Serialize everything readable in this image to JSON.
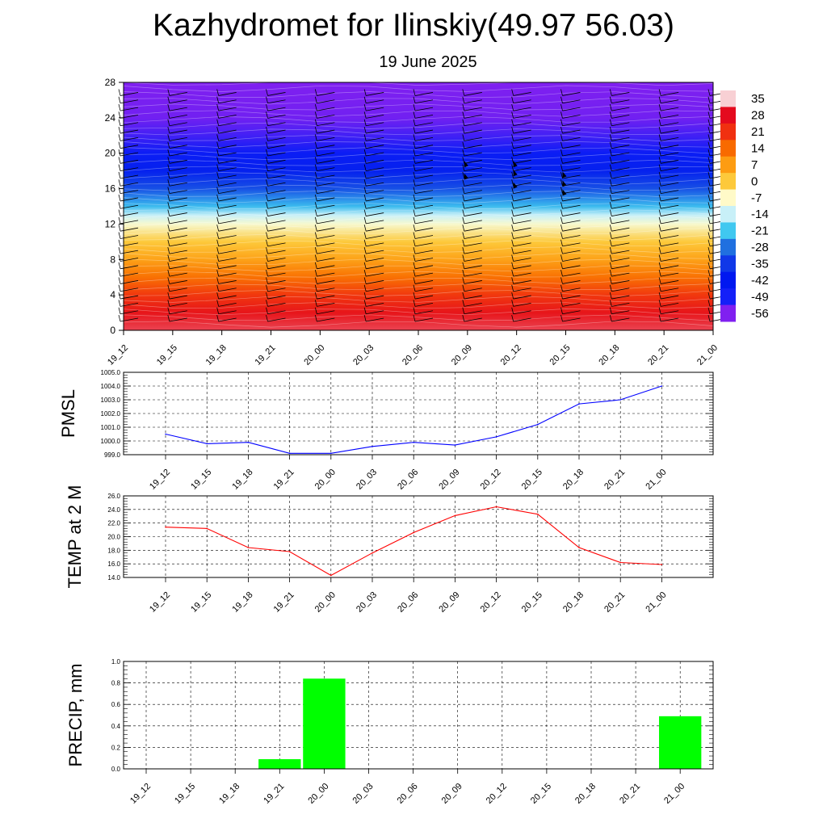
{
  "header": {
    "title": "Kazhydromet for Ilinskiy(49.97 56.03)",
    "subtitle": "19 June 2025"
  },
  "colors": {
    "pmsl_line": "#0000ff",
    "temp_line": "#ff0000",
    "precip_bar": "#00ff00",
    "frame": "#000000",
    "grid": "#000000"
  },
  "chart_data": [
    {
      "type": "heatmap",
      "name": "upper-air-temperature",
      "title": "",
      "x": [
        "19_12",
        "19_15",
        "19_18",
        "19_21",
        "20_00",
        "20_03",
        "20_06",
        "20_09",
        "20_12",
        "20_15",
        "20_18",
        "20_21",
        "21_00"
      ],
      "ylim": [
        0,
        28
      ],
      "yticks": [
        0,
        4,
        8,
        12,
        16,
        20,
        24,
        28
      ],
      "colorbar": {
        "labels": [
          "35",
          "28",
          "21",
          "14",
          "7",
          "0",
          "-7",
          "-14",
          "-21",
          "-28",
          "-35",
          "-42",
          "-49",
          "-56"
        ],
        "colors": [
          "#f8d0d4",
          "#e40a1e",
          "#f03010",
          "#f86a00",
          "#fd9c12",
          "#fdc93b",
          "#fffac8",
          "#c8f0f8",
          "#40c8f0",
          "#2070e0",
          "#1038e8",
          "#0018f0",
          "#1420f8",
          "#8020f0"
        ]
      },
      "profile": [
        {
          "h": 0,
          "t": 30
        },
        {
          "h": 2,
          "t": 26
        },
        {
          "h": 4,
          "t": 20
        },
        {
          "h": 6,
          "t": 13
        },
        {
          "h": 8,
          "t": 6
        },
        {
          "h": 10,
          "t": 0
        },
        {
          "h": 12,
          "t": -8
        },
        {
          "h": 13,
          "t": -14
        },
        {
          "h": 14,
          "t": -22
        },
        {
          "h": 16,
          "t": -32
        },
        {
          "h": 18,
          "t": -40
        },
        {
          "h": 20,
          "t": -46
        },
        {
          "h": 22,
          "t": -52
        },
        {
          "h": 24,
          "t": -55
        },
        {
          "h": 28,
          "t": -56
        }
      ],
      "wind_barbs": "present on all times and levels"
    },
    {
      "type": "line",
      "name": "pmsl",
      "ylabel": "PMSL",
      "categories": [
        "19_12",
        "19_15",
        "19_18",
        "19_21",
        "20_00",
        "20_03",
        "20_06",
        "20_09",
        "20_12",
        "20_15",
        "20_18",
        "20_21",
        "21_00"
      ],
      "values": [
        1000.5,
        999.8,
        999.9,
        999.1,
        999.1,
        999.6,
        999.9,
        999.7,
        1000.3,
        1001.2,
        1002.7,
        1003.0,
        1004.0
      ],
      "ylim": [
        999.0,
        1005.0
      ],
      "yticks": [
        "999.0",
        "1000.0",
        "1001.0",
        "1002.0",
        "1003.0",
        "1004.0",
        "1005.0"
      ],
      "grid": true
    },
    {
      "type": "line",
      "name": "temp-2m",
      "ylabel": "TEMP at 2 M",
      "categories": [
        "19_12",
        "19_15",
        "19_18",
        "19_21",
        "20_00",
        "20_03",
        "20_06",
        "20_09",
        "20_12",
        "20_15",
        "20_18",
        "20_21",
        "21_00"
      ],
      "values": [
        21.4,
        21.2,
        18.4,
        17.8,
        14.3,
        17.6,
        20.6,
        23.1,
        24.4,
        23.3,
        18.4,
        16.2,
        15.9
      ],
      "ylim": [
        14.0,
        26.0
      ],
      "yticks": [
        "14.0",
        "16.0",
        "18.0",
        "20.0",
        "22.0",
        "24.0",
        "26.0"
      ],
      "grid": true
    },
    {
      "type": "bar",
      "name": "precip",
      "ylabel": "PRECIP, mm",
      "categories": [
        "19_12",
        "19_15",
        "19_18",
        "19_21",
        "20_00",
        "20_03",
        "20_06",
        "20_09",
        "20_12",
        "20_15",
        "20_18",
        "20_21",
        "21_00"
      ],
      "values": [
        0,
        0,
        0,
        0.09,
        0.84,
        0,
        0,
        0,
        0,
        0,
        0,
        0,
        0.49
      ],
      "ylim": [
        0.0,
        1.0
      ],
      "yticks": [
        "0.0",
        "0.2",
        "0.4",
        "0.6",
        "0.8",
        "1.0"
      ],
      "grid": true
    }
  ]
}
